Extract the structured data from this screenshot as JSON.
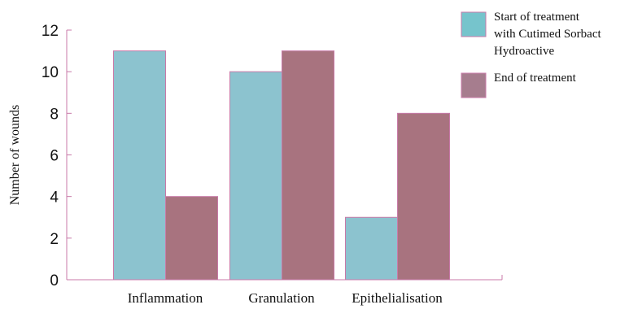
{
  "chart_data": {
    "type": "bar",
    "ylabel": "Number of wounds",
    "xlabel": "",
    "ylim": [
      0,
      12
    ],
    "yticks": [
      0,
      2,
      4,
      6,
      8,
      10,
      12
    ],
    "categories": [
      "Inflammation",
      "Granulation",
      "Epithelialisation"
    ],
    "series": [
      {
        "name": "Start of treatment with Cutimed Sorbact Hydroactive",
        "values": [
          11,
          10,
          3
        ],
        "color": "#8cc3cf"
      },
      {
        "name": "End of treatment",
        "values": [
          4,
          11,
          8
        ],
        "color": "#a8737f"
      }
    ],
    "legend": {
      "placement": "top-right",
      "entries": [
        {
          "lines": [
            "Start of treatment",
            "with Cutimed Sorbact",
            "Hydroactive"
          ],
          "color": "#76c4cc"
        },
        {
          "lines": [
            "End of treatment"
          ],
          "color": "#a67d8e"
        }
      ]
    },
    "grid": false,
    "axis_color": "#c87aa8"
  }
}
